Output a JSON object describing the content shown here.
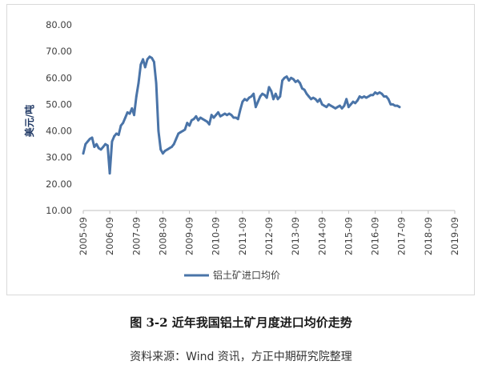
{
  "figure": {
    "caption": "图 3-2 近年我国铝土矿月度进口均价走势",
    "source": "资料来源：Wind 资讯，方正中期研究院整理"
  },
  "chart_data": {
    "type": "line",
    "title": "",
    "xlabel": "",
    "ylabel": "美元/吨",
    "ylim": [
      10,
      80
    ],
    "grid": false,
    "legend_position": "bottom",
    "y_ticks": [
      "10.00",
      "20.00",
      "30.00",
      "40.00",
      "50.00",
      "60.00",
      "70.00",
      "80.00"
    ],
    "x_ticks": [
      "2005-09",
      "2006-09",
      "2007-09",
      "2008-09",
      "2009-09",
      "2010-09",
      "2011-09",
      "2012-09",
      "2013-09",
      "2014-09",
      "2015-09",
      "2016-09",
      "2017-09",
      "2018-09",
      "2019-09"
    ],
    "series": [
      {
        "name": "铝土矿进口均价",
        "color": "#4a74a8",
        "points": [
          [
            "2005-09",
            31.5
          ],
          [
            "2005-10",
            35
          ],
          [
            "2005-11",
            36
          ],
          [
            "2005-12",
            37
          ],
          [
            "2006-01",
            37.5
          ],
          [
            "2006-02",
            34
          ],
          [
            "2006-03",
            35
          ],
          [
            "2006-04",
            33.5
          ],
          [
            "2006-05",
            33
          ],
          [
            "2006-06",
            34
          ],
          [
            "2006-07",
            35
          ],
          [
            "2006-08",
            34.5
          ],
          [
            "2006-09",
            24
          ],
          [
            "2006-10",
            36
          ],
          [
            "2006-11",
            38
          ],
          [
            "2006-12",
            39
          ],
          [
            "2007-01",
            38.5
          ],
          [
            "2007-02",
            42
          ],
          [
            "2007-03",
            43
          ],
          [
            "2007-04",
            45
          ],
          [
            "2007-05",
            47
          ],
          [
            "2007-06",
            46.5
          ],
          [
            "2007-07",
            48.5
          ],
          [
            "2007-08",
            46
          ],
          [
            "2007-09",
            53
          ],
          [
            "2007-10",
            58
          ],
          [
            "2007-11",
            65
          ],
          [
            "2007-12",
            67
          ],
          [
            "2008-01",
            64
          ],
          [
            "2008-02",
            67
          ],
          [
            "2008-03",
            68
          ],
          [
            "2008-04",
            67.5
          ],
          [
            "2008-05",
            66
          ],
          [
            "2008-06",
            58
          ],
          [
            "2008-07",
            40
          ],
          [
            "2008-08",
            33
          ],
          [
            "2008-09",
            31.5
          ],
          [
            "2008-10",
            32.5
          ],
          [
            "2008-11",
            33
          ],
          [
            "2008-12",
            33.5
          ],
          [
            "2009-01",
            34
          ],
          [
            "2009-02",
            35
          ],
          [
            "2009-03",
            37
          ],
          [
            "2009-04",
            39
          ],
          [
            "2009-05",
            39.5
          ],
          [
            "2009-06",
            40
          ],
          [
            "2009-07",
            40.5
          ],
          [
            "2009-08",
            43
          ],
          [
            "2009-09",
            42
          ],
          [
            "2009-10",
            44
          ],
          [
            "2009-11",
            44.5
          ],
          [
            "2009-12",
            45.5
          ],
          [
            "2010-01",
            44
          ],
          [
            "2010-02",
            45
          ],
          [
            "2010-03",
            44.5
          ],
          [
            "2010-04",
            44
          ],
          [
            "2010-05",
            43.5
          ],
          [
            "2010-06",
            42.5
          ],
          [
            "2010-07",
            46
          ],
          [
            "2010-08",
            45
          ],
          [
            "2010-09",
            46
          ],
          [
            "2010-10",
            47
          ],
          [
            "2010-11",
            45.5
          ],
          [
            "2010-12",
            46
          ],
          [
            "2011-01",
            46.5
          ],
          [
            "2011-02",
            46
          ],
          [
            "2011-03",
            46.5
          ],
          [
            "2011-04",
            46
          ],
          [
            "2011-05",
            45
          ],
          [
            "2011-06",
            45
          ],
          [
            "2011-07",
            44.5
          ],
          [
            "2011-08",
            48
          ],
          [
            "2011-09",
            51
          ],
          [
            "2011-10",
            52
          ],
          [
            "2011-11",
            51.5
          ],
          [
            "2011-12",
            52.5
          ],
          [
            "2012-01",
            53
          ],
          [
            "2012-02",
            54
          ],
          [
            "2012-03",
            49
          ],
          [
            "2012-04",
            51
          ],
          [
            "2012-05",
            53
          ],
          [
            "2012-06",
            54
          ],
          [
            "2012-07",
            53.5
          ],
          [
            "2012-08",
            52.5
          ],
          [
            "2012-09",
            56.5
          ],
          [
            "2012-10",
            55
          ],
          [
            "2012-11",
            52
          ],
          [
            "2012-12",
            54
          ],
          [
            "2013-01",
            52
          ],
          [
            "2013-02",
            53
          ],
          [
            "2013-03",
            59
          ],
          [
            "2013-04",
            60
          ],
          [
            "2013-05",
            60.5
          ],
          [
            "2013-06",
            59
          ],
          [
            "2013-07",
            60
          ],
          [
            "2013-08",
            59.5
          ],
          [
            "2013-09",
            58.5
          ],
          [
            "2013-10",
            59
          ],
          [
            "2013-11",
            58
          ],
          [
            "2013-12",
            56
          ],
          [
            "2014-01",
            55.5
          ],
          [
            "2014-02",
            54
          ],
          [
            "2014-03",
            53
          ],
          [
            "2014-04",
            52
          ],
          [
            "2014-05",
            52.5
          ],
          [
            "2014-06",
            52
          ],
          [
            "2014-07",
            51
          ],
          [
            "2014-08",
            52
          ],
          [
            "2014-09",
            50
          ],
          [
            "2014-10",
            49.5
          ],
          [
            "2014-11",
            49
          ],
          [
            "2014-12",
            50
          ],
          [
            "2015-01",
            49.5
          ],
          [
            "2015-02",
            49
          ],
          [
            "2015-03",
            48.5
          ],
          [
            "2015-04",
            49
          ],
          [
            "2015-05",
            49.5
          ],
          [
            "2015-06",
            48.5
          ],
          [
            "2015-07",
            49.5
          ],
          [
            "2015-08",
            52
          ],
          [
            "2015-09",
            49
          ],
          [
            "2015-10",
            50
          ],
          [
            "2015-11",
            51
          ],
          [
            "2015-12",
            50.5
          ],
          [
            "2016-01",
            51.5
          ],
          [
            "2016-02",
            53
          ],
          [
            "2016-03",
            52.5
          ],
          [
            "2016-04",
            53
          ],
          [
            "2016-05",
            52.5
          ],
          [
            "2016-06",
            53
          ],
          [
            "2016-07",
            53.5
          ],
          [
            "2016-08",
            53.5
          ],
          [
            "2016-09",
            54.5
          ],
          [
            "2016-10",
            54
          ],
          [
            "2016-11",
            54.5
          ],
          [
            "2016-12",
            54
          ],
          [
            "2017-01",
            53
          ],
          [
            "2017-02",
            53
          ],
          [
            "2017-03",
            52
          ],
          [
            "2017-04",
            50
          ],
          [
            "2017-05",
            50
          ],
          [
            "2017-06",
            49.5
          ],
          [
            "2017-07",
            49.5
          ],
          [
            "2017-08",
            49
          ]
        ]
      }
    ]
  }
}
